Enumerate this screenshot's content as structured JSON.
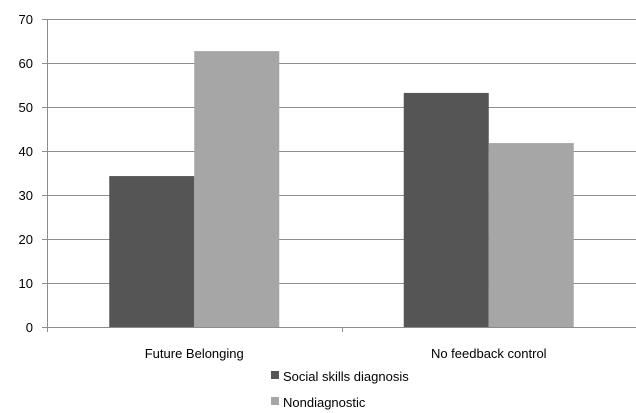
{
  "chart_data": {
    "type": "bar",
    "title": "",
    "xlabel": "",
    "ylabel": "",
    "categories": [
      "Future Belonging",
      "No feedback control"
    ],
    "series": [
      {
        "name": "Social skills diagnosis",
        "values": [
          34.3,
          53.2
        ],
        "color": "#555555"
      },
      {
        "name": "Nondiagnostic",
        "values": [
          62.7,
          41.8
        ],
        "color": "#a6a6a6"
      }
    ],
    "ylim": [
      0,
      70
    ],
    "yticks": [
      0,
      10,
      20,
      30,
      40,
      50,
      60,
      70
    ],
    "grid": true,
    "legend": "bottom"
  }
}
